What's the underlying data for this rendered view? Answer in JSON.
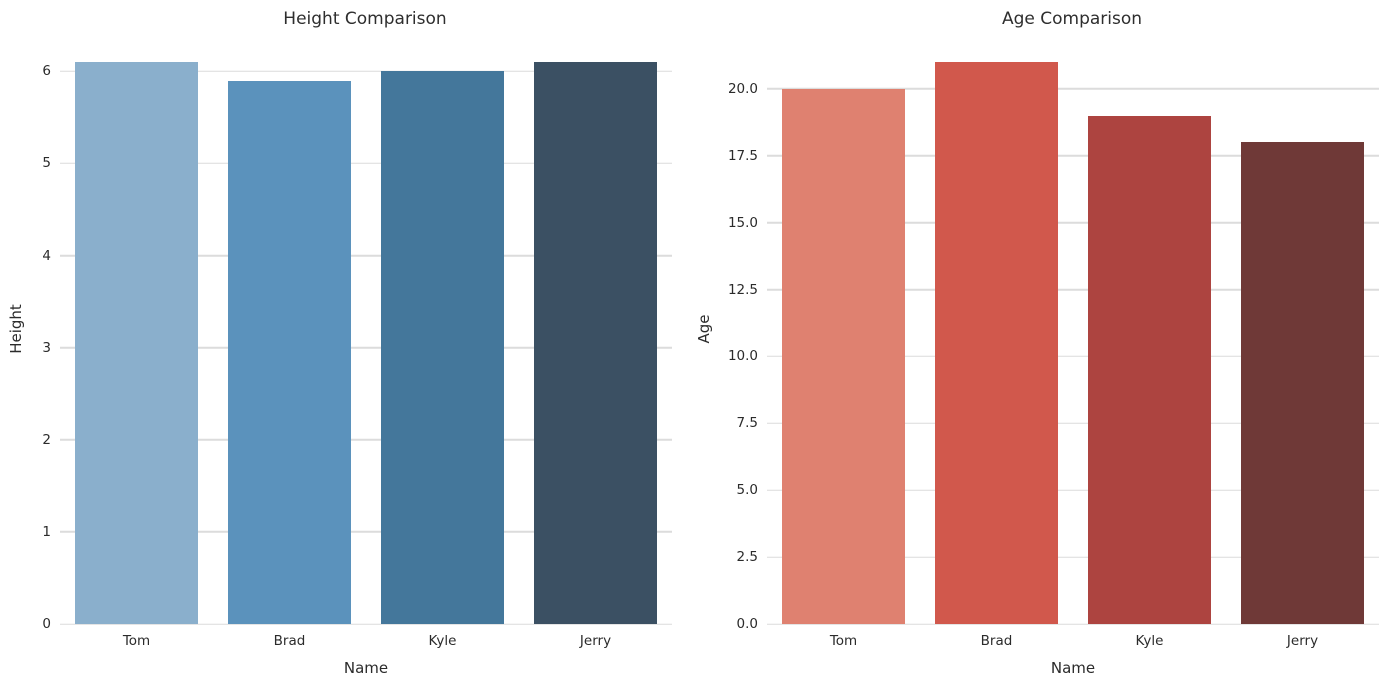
{
  "figure": {
    "background": "#ffffff",
    "grid_color": "#dcdcdc",
    "text_color": "#2b2b2b"
  },
  "chart_data": [
    {
      "type": "bar",
      "title": "Height Comparison",
      "xlabel": "Name",
      "ylabel": "Height",
      "categories": [
        "Tom",
        "Brad",
        "Kyle",
        "Jerry"
      ],
      "values": [
        6.1,
        5.9,
        6.0,
        6.1
      ],
      "bar_colors": [
        "#8aafcc",
        "#5b92bc",
        "#44779b",
        "#3b5063"
      ],
      "yticks": [
        0,
        1,
        2,
        3,
        4,
        5,
        6
      ],
      "ytick_labels": [
        "0",
        "1",
        "2",
        "3",
        "4",
        "5",
        "6"
      ],
      "ylim": [
        0,
        6.405
      ],
      "grid": true,
      "legend": null,
      "bar_width_fraction": 0.8
    },
    {
      "type": "bar",
      "title": "Age Comparison",
      "xlabel": "Name",
      "ylabel": "Age",
      "categories": [
        "Tom",
        "Brad",
        "Kyle",
        "Jerry"
      ],
      "values": [
        20,
        21,
        19,
        18
      ],
      "bar_colors": [
        "#df8170",
        "#d1584c",
        "#ad4440",
        "#6f3937"
      ],
      "yticks": [
        0,
        2.5,
        5,
        7.5,
        10,
        12.5,
        15,
        17.5,
        20
      ],
      "ytick_labels": [
        "0.0",
        "2.5",
        "5.0",
        "7.5",
        "10.0",
        "12.5",
        "15.0",
        "17.5",
        "20.0"
      ],
      "ylim": [
        0,
        22.05
      ],
      "grid": true,
      "legend": null,
      "bar_width_fraction": 0.8
    }
  ]
}
